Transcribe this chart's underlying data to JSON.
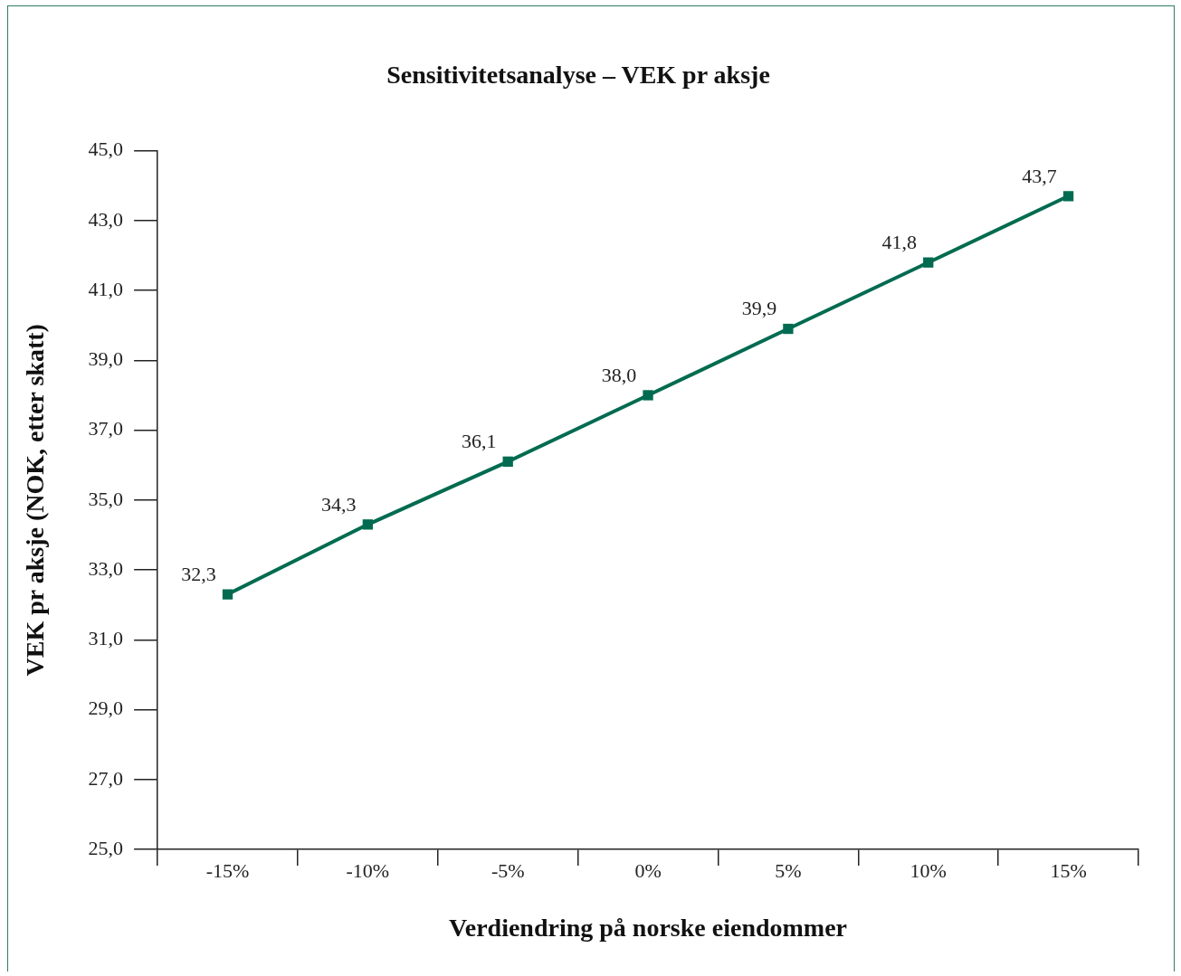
{
  "chart_data": {
    "type": "line",
    "title": "Sensitivitetsanalyse – VEK pr aksje",
    "xlabel": "Verdiendring på norske eiendommer",
    "ylabel": "VEK pr aksje (NOK, etter skatt)",
    "categories": [
      "-15%",
      "-10%",
      "-5%",
      "0%",
      "5%",
      "10%",
      "15%"
    ],
    "series": [
      {
        "color": "#006b50",
        "values": [
          32.3,
          34.3,
          36.1,
          38.0,
          39.9,
          41.8,
          43.7
        ],
        "value_labels": [
          "32,3",
          "34,3",
          "36,1",
          "38,0",
          "39,9",
          "41,8",
          "43,7"
        ]
      }
    ],
    "ylim": [
      25,
      45
    ],
    "yticks": [
      {
        "value": 25,
        "label": "25,0"
      },
      {
        "value": 27,
        "label": "27,0"
      },
      {
        "value": 29,
        "label": "29,0"
      },
      {
        "value": 31,
        "label": "31,0"
      },
      {
        "value": 33,
        "label": "33,0"
      },
      {
        "value": 35,
        "label": "35,0"
      },
      {
        "value": 37,
        "label": "37,0"
      },
      {
        "value": 39,
        "label": "39,0"
      },
      {
        "value": 41,
        "label": "41,0"
      },
      {
        "value": 43,
        "label": "43,0"
      },
      {
        "value": 45,
        "label": "45,0"
      }
    ],
    "grid": false,
    "legend": false,
    "marker": "square",
    "line_style": "solid"
  }
}
